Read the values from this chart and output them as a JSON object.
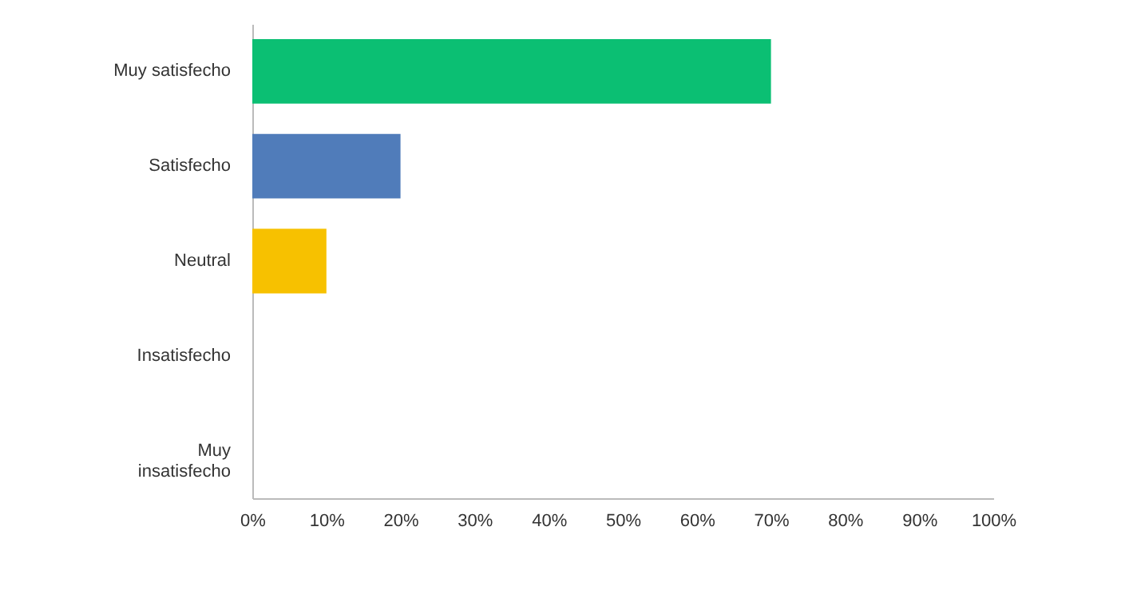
{
  "chart_data": {
    "type": "bar",
    "orientation": "horizontal",
    "categories": [
      "Muy satisfecho",
      "Satisfecho",
      "Neutral",
      "Insatisfecho",
      "Muy insatisfecho"
    ],
    "values": [
      70,
      20,
      10,
      0,
      0
    ],
    "colors": [
      "#0bbf73",
      "#507cba",
      "#f7c100",
      "#bbbbbb",
      "#bbbbbb"
    ],
    "xlim": [
      0,
      100
    ],
    "xticks": [
      {
        "value": 0,
        "label": "0%"
      },
      {
        "value": 10,
        "label": "10%"
      },
      {
        "value": 20,
        "label": "20%"
      },
      {
        "value": 30,
        "label": "30%"
      },
      {
        "value": 40,
        "label": "40%"
      },
      {
        "value": 50,
        "label": "50%"
      },
      {
        "value": 60,
        "label": "60%"
      },
      {
        "value": 70,
        "label": "70%"
      },
      {
        "value": 80,
        "label": "80%"
      },
      {
        "value": 90,
        "label": "90%"
      },
      {
        "value": 100,
        "label": "100%"
      }
    ],
    "grid": false
  }
}
